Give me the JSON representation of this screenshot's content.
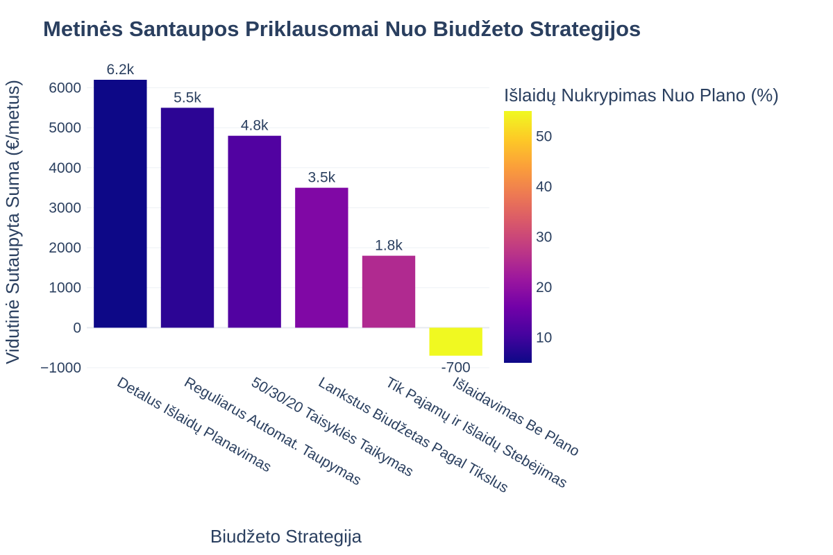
{
  "chart_data": {
    "type": "bar",
    "title": "Metinės Santaupos Priklausomai Nuo Biudžeto Strategijos",
    "xlabel": "Biudžeto Strategija",
    "ylabel": "Vidutinė Sutaupyta Suma (€/metus)",
    "ylim": [
      -1000,
      6200
    ],
    "yticks": [
      -1000,
      0,
      1000,
      2000,
      3000,
      4000,
      5000,
      6000
    ],
    "ytick_labels": [
      "−1000",
      "0",
      "1000",
      "2000",
      "3000",
      "4000",
      "5000",
      "6000"
    ],
    "categories": [
      "Detalus Išlaidų Planavimas",
      "Reguliarus Automat. Taupymas",
      "50/30/20 Taisyklės Taikymas",
      "Lankstus Biudžetas Pagal Tikslus",
      "Tik Pajamų ir Išlaidų Stebėjimas",
      "Išlaidavimas Be Plano"
    ],
    "values": [
      6200,
      5500,
      4800,
      3500,
      1800,
      -700
    ],
    "value_labels": [
      "6.2k",
      "5.5k",
      "4.8k",
      "3.5k",
      "1.8k",
      "-700"
    ],
    "color_values": [
      5,
      8,
      12,
      18,
      25,
      55
    ],
    "grid": true,
    "colorbar": {
      "title": "Išlaidų Nukrypimas Nuo Plano (%)",
      "range": [
        5,
        55
      ],
      "ticks": [
        10,
        20,
        30,
        40,
        50
      ],
      "tick_labels": [
        "10",
        "20",
        "30",
        "40",
        "50"
      ],
      "colors": [
        "#0d0887",
        "#46039f",
        "#7201a8",
        "#9c179e",
        "#bd3786",
        "#d8576b",
        "#ed7953",
        "#fb9f3a",
        "#fdca26",
        "#f0f921"
      ]
    }
  }
}
